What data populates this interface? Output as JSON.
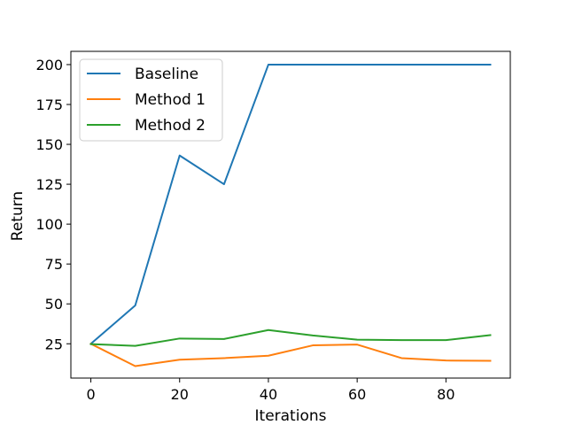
{
  "chart_data": {
    "type": "line",
    "title": "",
    "xlabel": "Iterations",
    "ylabel": "Return",
    "xlim": [
      -4.5,
      94.5
    ],
    "ylim": [
      3.5,
      208.3
    ],
    "xticks": [
      0,
      20,
      40,
      60,
      80
    ],
    "yticks": [
      25,
      50,
      75,
      100,
      125,
      150,
      175,
      200
    ],
    "grid": false,
    "legend_position": "top-left",
    "x": [
      0,
      10,
      20,
      30,
      40,
      50,
      60,
      70,
      80,
      90
    ],
    "series": [
      {
        "name": "Baseline",
        "color": "#1f77b4",
        "values": [
          25,
          49,
          143,
          125,
          200,
          200,
          200,
          200,
          200,
          200
        ]
      },
      {
        "name": "Method 1",
        "color": "#ff7f0e",
        "values": [
          25,
          11,
          15,
          16,
          17.5,
          24,
          24.5,
          16,
          14.5,
          14.3
        ]
      },
      {
        "name": "Method 2",
        "color": "#2ca02c",
        "values": [
          24.8,
          23.7,
          28.3,
          28,
          33.6,
          30.2,
          27.6,
          27.3,
          27.3,
          30.4
        ]
      }
    ]
  }
}
